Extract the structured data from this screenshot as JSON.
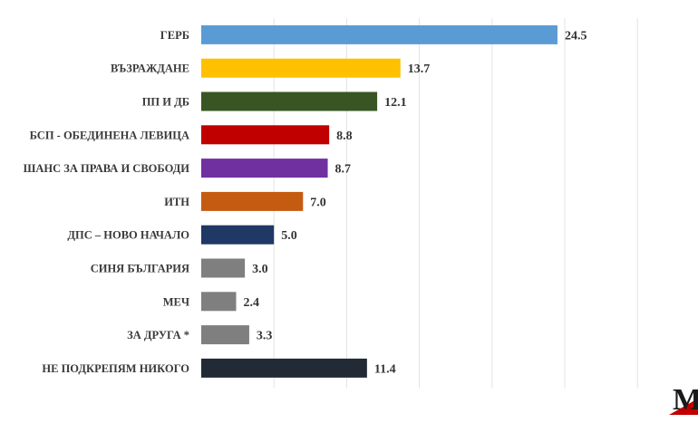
{
  "chart_data": {
    "type": "bar",
    "orientation": "horizontal",
    "categories": [
      "ГЕРБ",
      "ВЪЗРАЖДАНЕ",
      "ПП И ДБ",
      "БСП - ОБЕДИНЕНА ЛЕВИЦА",
      "ШАНС ЗА ПРАВА И СВОБОДИ",
      "ИТН",
      "ДПС – НОВО НАЧАЛО",
      "СИНЯ БЪЛГАРИЯ",
      "МЕЧ",
      "ЗА ДРУГА *",
      "НЕ ПОДКРЕПЯМ НИКОГО"
    ],
    "values": [
      24.5,
      13.7,
      12.1,
      8.8,
      8.7,
      7.0,
      5.0,
      3.0,
      2.4,
      3.3,
      11.4
    ],
    "value_labels": [
      "24.5",
      "13.7",
      "12.1",
      "8.8",
      "8.7",
      "7.0",
      "5.0",
      "3.0",
      "2.4",
      "3.3",
      "11.4"
    ],
    "colors": [
      "#5b9bd5",
      "#ffc000",
      "#375623",
      "#c00000",
      "#7030a0",
      "#c55a11",
      "#1f3864",
      "#7f7f7f",
      "#7f7f7f",
      "#7f7f7f",
      "#222a35"
    ],
    "xlim": [
      0,
      35
    ],
    "grid": true,
    "title": "",
    "xlabel": "",
    "ylabel": ""
  },
  "logo": {
    "text": "M",
    "colors": [
      "#1a1a1a",
      "#c00000"
    ]
  }
}
